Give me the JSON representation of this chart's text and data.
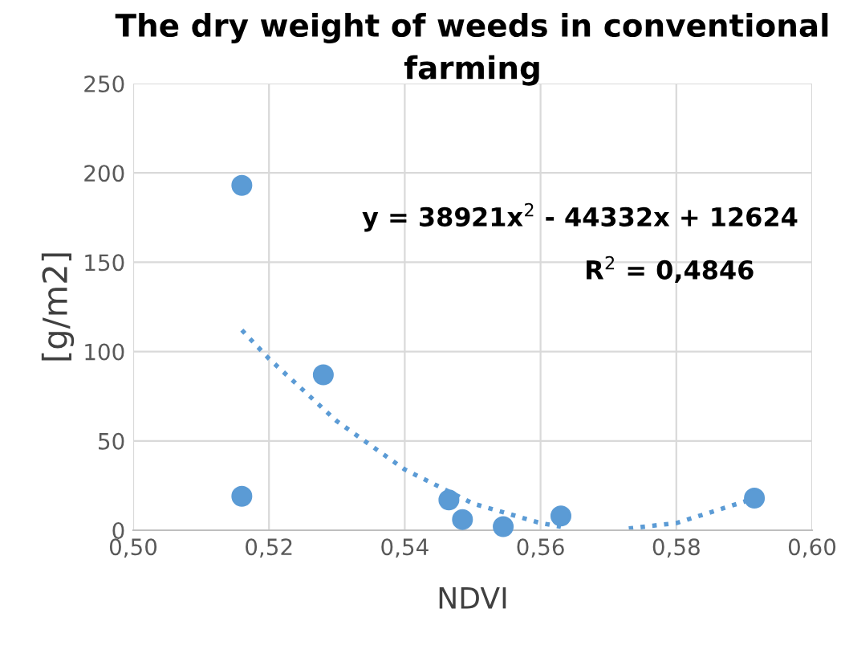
{
  "chart_data": {
    "type": "scatter",
    "title": "The dry weight of weeds in conventional\nfarming",
    "xlabel": "NDVI",
    "ylabel": "[g/m2]",
    "series": [
      {
        "color": "#5b9bd5",
        "marker": "circle",
        "x": [
          0.516,
          0.516,
          0.528,
          0.5465,
          0.5485,
          0.5545,
          0.563,
          0.5915
        ],
        "values": [
          193,
          19,
          87,
          17,
          6,
          2,
          8,
          18
        ]
      },
      {
        "type": "line",
        "color": "#5b9bd5",
        "line_style": "dotted",
        "marker": "none",
        "x": [
          0.516,
          0.52,
          0.53,
          0.54,
          0.55,
          0.56,
          0.563,
          0.568,
          0.573,
          0.58,
          0.59,
          0.5915
        ],
        "values": [
          112,
          96,
          61,
          34,
          15,
          4,
          2,
          null,
          1,
          4,
          16,
          19
        ]
      }
    ],
    "annotations": [
      "y = 38921x$^{2}$ - 44332x + 12624",
      "R$^{2}$ = 0,4846"
    ],
    "xlim": [
      0.5,
      0.6
    ],
    "xticks": [
      {
        "value": 0.5,
        "label": "0,50"
      },
      {
        "value": 0.52,
        "label": "0,52"
      },
      {
        "value": 0.54,
        "label": "0,54"
      },
      {
        "value": 0.56,
        "label": "0,56"
      },
      {
        "value": 0.58,
        "label": "0,58"
      },
      {
        "value": 0.6,
        "label": "0,60"
      }
    ],
    "ylim": [
      0,
      250
    ],
    "yticks": [
      0,
      50,
      100,
      150,
      200,
      250
    ],
    "grid": true,
    "legend": false
  }
}
